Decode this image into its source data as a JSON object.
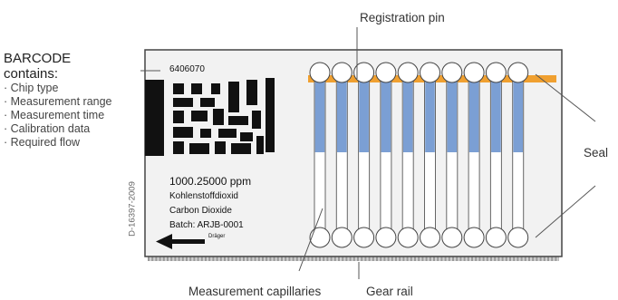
{
  "legend": {
    "title_line1": "BARCODE",
    "title_line2": "contains:",
    "items": [
      "· Chip type",
      "· Measurement range",
      "· Measurement time",
      "· Calibration data",
      "· Required flow"
    ]
  },
  "callouts": {
    "registration_pin": "Registration pin",
    "seal": "Seal",
    "measurement_capillaries": "Measurement capillaries",
    "gear_rail": "Gear rail"
  },
  "chip": {
    "serial": "6406070",
    "range": "1000.25000 ppm",
    "name_de": "Kohlenstoffdioxid",
    "name_en": "Carbon Dioxide",
    "batch": "Batch: ARJB-0001",
    "brand": "Dräger"
  },
  "figure_id": "D-16397-2009",
  "colors": {
    "capillary_fill": "#7b9fd4",
    "orange_band": "#f0a030",
    "chip_body": "#f2f2f2",
    "chip_border": "#444444",
    "gear_rail": "#9a9a9a"
  }
}
